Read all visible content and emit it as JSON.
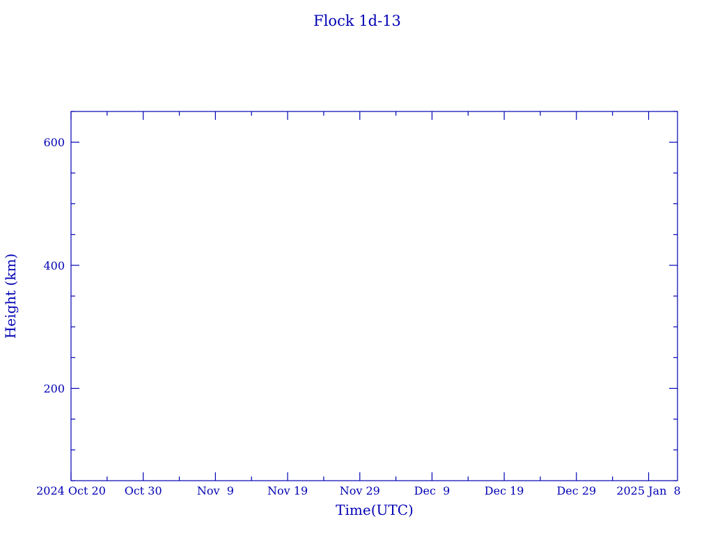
{
  "chart_data": {
    "type": "line",
    "title": "Flock 1d-13",
    "xlabel": "Time(UTC)",
    "ylabel": "Height (km)",
    "xlim": [
      "2024-10-20",
      "2025-01-12"
    ],
    "ylim": [
      50,
      650
    ],
    "x_ticks": [
      {
        "date": "2024-10-20",
        "label": "2024 Oct 20"
      },
      {
        "date": "2024-10-30",
        "label": "Oct 30"
      },
      {
        "date": "2024-11-09",
        "label": "Nov  9"
      },
      {
        "date": "2024-11-19",
        "label": "Nov 19"
      },
      {
        "date": "2024-11-29",
        "label": "Nov 29"
      },
      {
        "date": "2024-12-09",
        "label": "Dec  9"
      },
      {
        "date": "2024-12-19",
        "label": "Dec 19"
      },
      {
        "date": "2024-12-29",
        "label": "Dec 29"
      },
      {
        "date": "2025-01-08",
        "label": "2025 Jan  8"
      }
    ],
    "x_minor_tick_days": 5,
    "y_ticks": [
      200,
      400,
      600
    ],
    "y_minor_tick_step": 50,
    "grid": false,
    "series": [],
    "color": "#0000b4"
  }
}
